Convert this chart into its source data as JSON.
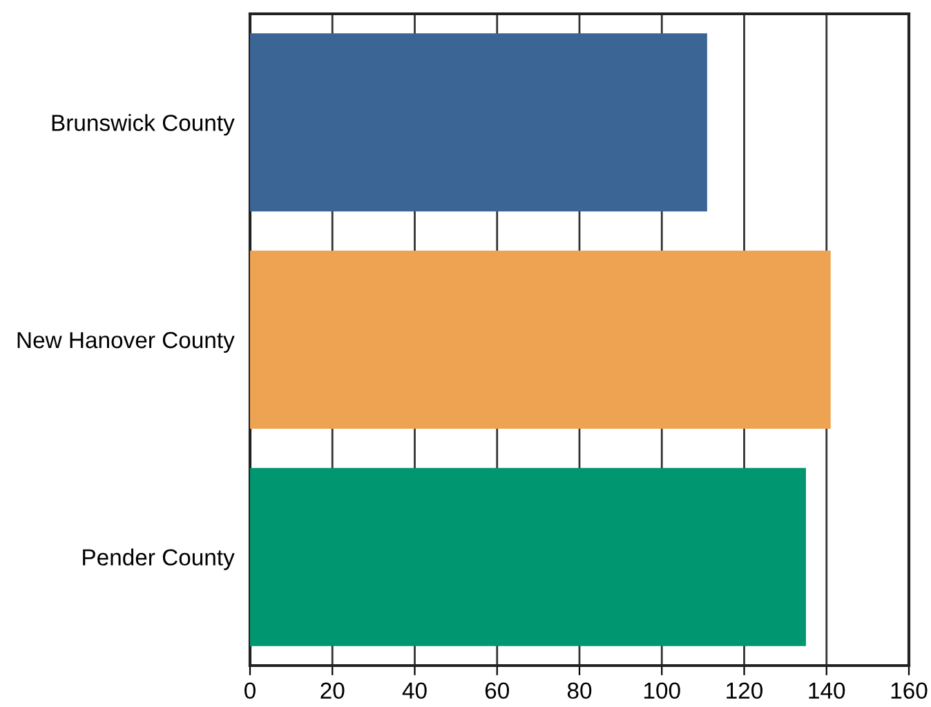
{
  "chart_data": {
    "type": "bar",
    "orientation": "horizontal",
    "categories": [
      "Brunswick County",
      "New Hanover County",
      "Pender County"
    ],
    "values": [
      111,
      141,
      135
    ],
    "colors": [
      "#3a6595",
      "#eea353",
      "#009670"
    ],
    "xlim": [
      0,
      160
    ],
    "xticks": [
      0,
      20,
      40,
      60,
      80,
      100,
      120,
      140,
      160
    ],
    "grid": "x"
  }
}
